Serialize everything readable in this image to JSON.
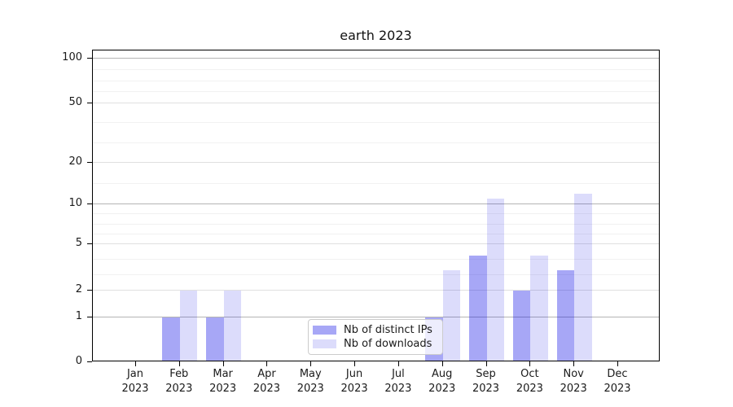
{
  "title": "earth 2023",
  "chart_data": {
    "type": "bar",
    "title": "earth 2023",
    "x_year": "2023",
    "categories": [
      "Jan",
      "Feb",
      "Mar",
      "Apr",
      "May",
      "Jun",
      "Jul",
      "Aug",
      "Sep",
      "Oct",
      "Nov",
      "Dec"
    ],
    "series": [
      {
        "name": "Nb of distinct IPs",
        "color": "#0a0ae6",
        "alpha": 0.36,
        "values": [
          0,
          1,
          1,
          0,
          0,
          0,
          0,
          1,
          4,
          2,
          3,
          0
        ]
      },
      {
        "name": "Nb of downloads",
        "color": "#0a0ae6",
        "alpha": 0.14,
        "values": [
          0,
          2,
          2,
          0,
          0,
          0,
          0,
          3,
          11,
          4,
          12,
          0
        ]
      }
    ],
    "y_axis": {
      "scale": "quasi-log",
      "ticks": [
        0,
        1,
        2,
        5,
        10,
        20,
        50,
        100
      ],
      "range": [
        0,
        115
      ]
    },
    "x_axis": {
      "tick_label_format": "month-over-year"
    },
    "legend": {
      "entries": [
        "Nb of distinct IPs",
        "Nb of downloads"
      ],
      "position": "lower-center-inside"
    },
    "grid": true,
    "colors": {
      "background": "#ffffff",
      "axis": "#000000",
      "grid_major_pow10": "#b4b4b4",
      "grid_major_other": "#e0e0e0",
      "grid_minor": "#f1f1f1"
    }
  }
}
